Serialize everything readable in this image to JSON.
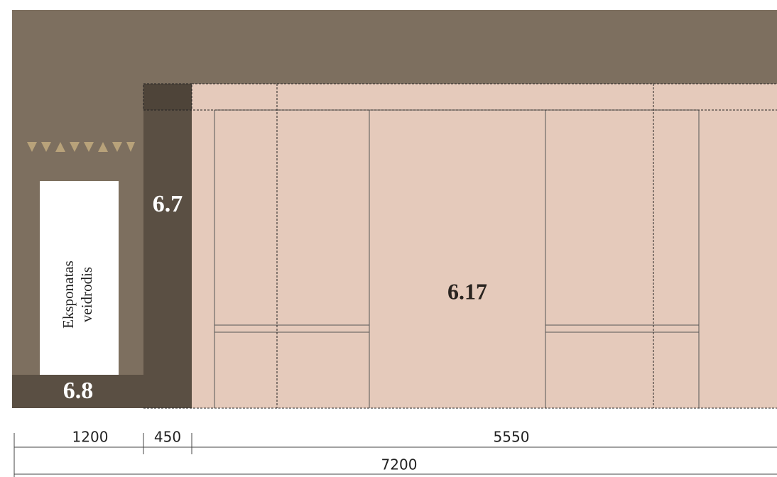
{
  "labels": {
    "column": "6.7",
    "base": "6.8",
    "wall": "6.17"
  },
  "exhibit": {
    "line1": "Eksponatas",
    "line2": "veidrodis"
  },
  "dimensions": {
    "left": "1200",
    "column": "450",
    "wall": "5550",
    "total": "7200"
  }
}
